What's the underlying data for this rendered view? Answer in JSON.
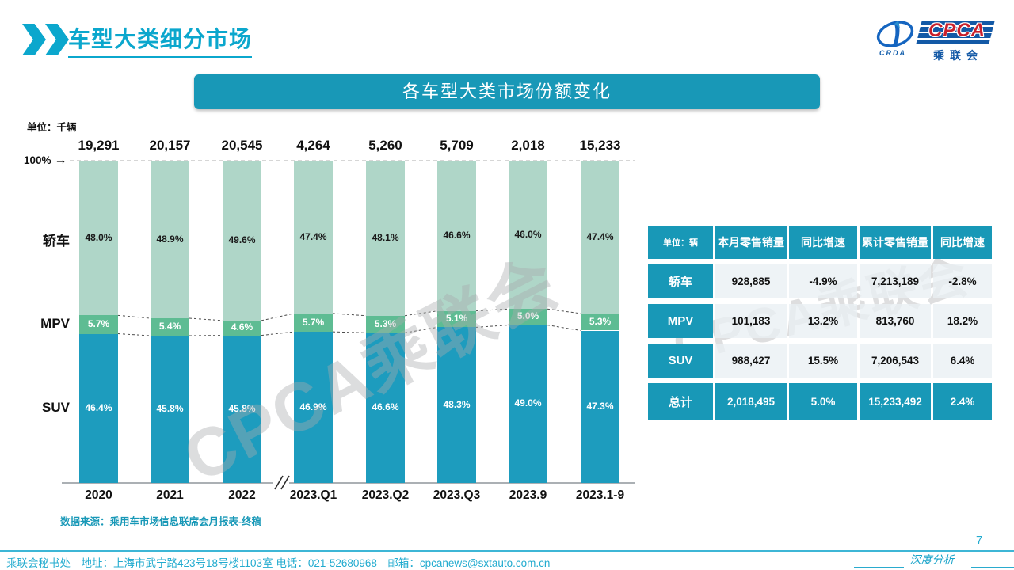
{
  "header": {
    "title": "车型大类细分市场",
    "logo": {
      "cpca": "CPCA",
      "crda": "CRDA",
      "cn": "乘联会"
    }
  },
  "banner": {
    "title": "各车型大类市场份额变化"
  },
  "chart": {
    "unit_label": "单位：千辆",
    "hundred_label": "100%",
    "row_labels": [
      "轿车",
      "MPV",
      "SUV"
    ],
    "source": "数据来源：乘用车市场信息联席会月报表-终稿"
  },
  "chart_data": {
    "type": "bar",
    "stacked": true,
    "title": "各车型大类市场份额变化",
    "unit": "千辆",
    "categories": [
      "2020",
      "2021",
      "2022",
      "2023.Q1",
      "2023.Q2",
      "2023.Q3",
      "2023.9",
      "2023.1-9"
    ],
    "totals": [
      "19,291",
      "20,157",
      "20,545",
      "4,264",
      "5,260",
      "5,709",
      "2,018",
      "15,233"
    ],
    "series": [
      {
        "name": "轿车",
        "color": "#afd6c8",
        "label_color": "#1a1a1a",
        "values": [
          48.0,
          48.9,
          49.6,
          47.4,
          48.1,
          46.6,
          46.0,
          47.4
        ]
      },
      {
        "name": "MPV",
        "color": "#5ebc93",
        "label_color": "#ffffff",
        "values": [
          5.7,
          5.4,
          4.6,
          5.7,
          5.3,
          5.1,
          5.0,
          5.3
        ]
      },
      {
        "name": "SUV",
        "color": "#1d9cbe",
        "label_color": "#ffffff",
        "values": [
          46.4,
          45.8,
          45.8,
          46.9,
          46.6,
          48.3,
          49.0,
          47.3
        ]
      }
    ],
    "ylim": [
      0,
      100
    ],
    "axis_break_after": "2022",
    "legend_position": "left-category-labels",
    "grid": false
  },
  "table": {
    "headers": [
      "单位：辆",
      "本月零售销量",
      "同比增速",
      "累计零售销量",
      "同比增速"
    ],
    "rows": [
      {
        "label": "轿车",
        "cells": [
          "928,885",
          "-4.9%",
          "7,213,189",
          "-2.8%"
        ],
        "total": false
      },
      {
        "label": "MPV",
        "cells": [
          "101,183",
          "13.2%",
          "813,760",
          "18.2%"
        ],
        "total": false
      },
      {
        "label": "SUV",
        "cells": [
          "988,427",
          "15.5%",
          "7,206,543",
          "6.4%"
        ],
        "total": false
      },
      {
        "label": "总计",
        "cells": [
          "2,018,495",
          "5.0%",
          "15,233,492",
          "2.4%"
        ],
        "total": true
      }
    ]
  },
  "watermark": "CPCA乘联会",
  "footer": {
    "left": "乘联会秘书处　地址：上海市武宁路423号18号楼1103室 电话：021-52680968　邮箱：cpcanews@sxtauto.com.cn",
    "report_label": "深度分析报告",
    "page": "7"
  },
  "colors": {
    "accent_cyan": "#0ba7cd",
    "teal": "#1898b7",
    "sedan": "#afd6c8",
    "mpv": "#5ebc93",
    "suv": "#1d9cbe",
    "footer_cyan": "#22abcf",
    "logo_blue": "#1359a6",
    "logo_red": "#c8202c"
  }
}
